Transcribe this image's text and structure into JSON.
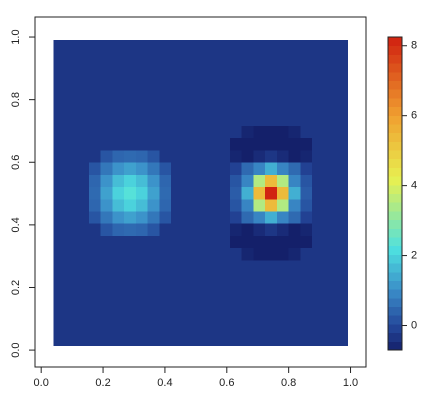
{
  "chart_data": {
    "type": "heatmap",
    "xrange": [
      0.04,
      0.99
    ],
    "yrange": [
      0.015,
      0.99
    ],
    "xlim": [
      -0.02,
      1.05
    ],
    "ylim": [
      -0.054,
      1.064
    ],
    "xticks": [
      {
        "value": 0,
        "label": "0.0"
      },
      0.2,
      0.4,
      0.6,
      0.8,
      {
        "value": 1,
        "label": "1.0"
      }
    ],
    "yticks": [
      {
        "value": 0,
        "label": "0.0"
      },
      0.2,
      0.4,
      0.6,
      0.8,
      {
        "value": 1,
        "label": "1.0"
      }
    ],
    "zlim": [
      -0.7,
      8.25
    ],
    "zticks": [
      0,
      2,
      4,
      6,
      8
    ],
    "colorscale": [
      [
        -0.7,
        "#14206a"
      ],
      [
        0,
        "#24479a"
      ],
      [
        1,
        "#3a8cc8"
      ],
      [
        2.2,
        "#4ee0e0"
      ],
      [
        4.2,
        "#e8f050"
      ],
      [
        6,
        "#f0a030"
      ],
      [
        8.25,
        "#d02010"
      ]
    ],
    "z": [
      [
        -0.3,
        -0.3,
        -0.3,
        -0.3,
        -0.3,
        -0.3,
        -0.3,
        -0.3,
        -0.3,
        -0.3,
        -0.3,
        -0.3,
        -0.3,
        -0.3,
        -0.3,
        -0.3,
        -0.3,
        -0.3,
        -0.3,
        -0.3,
        -0.3,
        -0.3,
        -0.3,
        -0.3,
        -0.3
      ],
      [
        -0.3,
        -0.3,
        -0.3,
        -0.3,
        -0.3,
        -0.3,
        -0.3,
        -0.3,
        -0.3,
        -0.3,
        -0.3,
        -0.3,
        -0.3,
        -0.3,
        -0.3,
        -0.3,
        -0.3,
        -0.3,
        -0.3,
        -0.3,
        -0.3,
        -0.3,
        -0.3,
        -0.3,
        -0.3
      ],
      [
        -0.3,
        -0.3,
        -0.3,
        -0.3,
        -0.3,
        -0.3,
        -0.3,
        -0.3,
        -0.3,
        -0.3,
        -0.3,
        -0.3,
        -0.3,
        -0.3,
        -0.3,
        -0.3,
        -0.3,
        -0.3,
        -0.3,
        -0.3,
        -0.3,
        -0.3,
        -0.3,
        -0.3,
        -0.3
      ],
      [
        -0.3,
        -0.3,
        -0.3,
        -0.3,
        -0.3,
        -0.3,
        -0.3,
        -0.3,
        -0.3,
        -0.3,
        -0.3,
        -0.3,
        -0.3,
        -0.3,
        -0.3,
        -0.3,
        -0.3,
        -0.3,
        -0.3,
        -0.3,
        -0.3,
        -0.3,
        -0.3,
        -0.3,
        -0.3
      ],
      [
        -0.3,
        -0.3,
        -0.3,
        -0.3,
        -0.3,
        -0.3,
        -0.3,
        -0.3,
        -0.3,
        -0.3,
        -0.3,
        -0.3,
        -0.3,
        -0.3,
        -0.3,
        -0.3,
        -0.3,
        -0.3,
        -0.3,
        -0.3,
        -0.3,
        -0.3,
        -0.3,
        -0.3,
        -0.3
      ],
      [
        -0.3,
        -0.3,
        -0.3,
        -0.3,
        -0.3,
        -0.3,
        -0.3,
        -0.3,
        -0.3,
        -0.3,
        -0.3,
        -0.3,
        -0.3,
        -0.3,
        -0.3,
        -0.3,
        -0.3,
        -0.3,
        -0.3,
        -0.3,
        -0.3,
        -0.3,
        -0.3,
        -0.3,
        -0.3
      ],
      [
        -0.3,
        -0.3,
        -0.3,
        -0.3,
        -0.3,
        -0.3,
        -0.3,
        -0.3,
        -0.3,
        -0.3,
        -0.3,
        -0.3,
        -0.3,
        -0.3,
        -0.3,
        -0.3,
        -0.3,
        -0.3,
        -0.3,
        -0.3,
        -0.3,
        -0.3,
        -0.3,
        -0.3,
        -0.3
      ],
      [
        -0.3,
        -0.3,
        -0.3,
        -0.3,
        -0.3,
        -0.3,
        -0.3,
        -0.3,
        -0.3,
        -0.3,
        -0.3,
        -0.3,
        -0.3,
        -0.3,
        -0.3,
        -0.3,
        -0.6,
        -0.7,
        -0.7,
        -0.7,
        -0.6,
        -0.3,
        -0.3,
        -0.3,
        -0.3
      ],
      [
        -0.3,
        -0.3,
        -0.3,
        -0.3,
        -0.3,
        -0.3,
        -0.3,
        -0.3,
        -0.3,
        -0.3,
        -0.3,
        -0.3,
        -0.3,
        -0.3,
        -0.3,
        -0.7,
        -0.8,
        -0.8,
        -0.8,
        -0.8,
        -0.8,
        -0.7,
        -0.3,
        -0.3,
        -0.3
      ],
      [
        -0.3,
        -0.3,
        -0.3,
        -0.3,
        0.2,
        0.45,
        0.5,
        0.45,
        0.2,
        -0.3,
        -0.3,
        -0.3,
        -0.3,
        -0.3,
        -0.3,
        -0.6,
        -0.7,
        -0.5,
        -0.3,
        -0.5,
        -0.7,
        -0.6,
        -0.3,
        -0.3,
        -0.3
      ],
      [
        -0.3,
        -0.3,
        -0.3,
        0.2,
        0.7,
        1.1,
        1.3,
        1.1,
        0.7,
        0.2,
        -0.3,
        -0.3,
        -0.3,
        -0.3,
        -0.3,
        -0.1,
        0.5,
        0.9,
        1.5,
        0.9,
        0.5,
        -0.1,
        -0.3,
        -0.3,
        -0.3
      ],
      [
        -0.3,
        -0.3,
        -0.3,
        0.45,
        1.1,
        1.7,
        2.0,
        1.7,
        1.1,
        0.45,
        -0.3,
        -0.3,
        -0.3,
        -0.3,
        -0.3,
        0.2,
        0.9,
        3.5,
        5.4,
        3.5,
        0.9,
        0.2,
        -0.3,
        -0.3,
        -0.3
      ],
      [
        -0.3,
        -0.3,
        -0.3,
        0.5,
        1.3,
        2.0,
        2.3,
        2.0,
        1.3,
        0.5,
        -0.3,
        -0.3,
        -0.3,
        -0.3,
        -0.3,
        0.3,
        1.5,
        5.4,
        8.2,
        5.4,
        1.5,
        0.3,
        -0.3,
        -0.3,
        -0.3
      ],
      [
        -0.3,
        -0.3,
        -0.3,
        0.45,
        1.1,
        1.7,
        2.0,
        1.7,
        1.1,
        0.45,
        -0.3,
        -0.3,
        -0.3,
        -0.3,
        -0.3,
        0.2,
        0.9,
        3.5,
        5.4,
        3.5,
        0.9,
        0.2,
        -0.3,
        -0.3,
        -0.3
      ],
      [
        -0.3,
        -0.3,
        -0.3,
        0.2,
        0.7,
        1.1,
        1.3,
        1.1,
        0.7,
        0.2,
        -0.3,
        -0.3,
        -0.3,
        -0.3,
        -0.3,
        -0.1,
        0.5,
        0.9,
        1.5,
        0.9,
        0.5,
        -0.1,
        -0.3,
        -0.3,
        -0.3
      ],
      [
        -0.3,
        -0.3,
        -0.3,
        -0.3,
        0.2,
        0.45,
        0.5,
        0.45,
        0.2,
        -0.3,
        -0.3,
        -0.3,
        -0.3,
        -0.3,
        -0.3,
        -0.6,
        -0.7,
        -0.5,
        -0.3,
        -0.5,
        -0.7,
        -0.6,
        -0.3,
        -0.3,
        -0.3
      ],
      [
        -0.3,
        -0.3,
        -0.3,
        -0.3,
        -0.3,
        -0.3,
        -0.3,
        -0.3,
        -0.3,
        -0.3,
        -0.3,
        -0.3,
        -0.3,
        -0.3,
        -0.3,
        -0.7,
        -0.8,
        -0.8,
        -0.8,
        -0.8,
        -0.8,
        -0.7,
        -0.3,
        -0.3,
        -0.3
      ],
      [
        -0.3,
        -0.3,
        -0.3,
        -0.3,
        -0.3,
        -0.3,
        -0.3,
        -0.3,
        -0.3,
        -0.3,
        -0.3,
        -0.3,
        -0.3,
        -0.3,
        -0.3,
        -0.3,
        -0.6,
        -0.7,
        -0.7,
        -0.7,
        -0.6,
        -0.3,
        -0.3,
        -0.3,
        -0.3
      ],
      [
        -0.3,
        -0.3,
        -0.3,
        -0.3,
        -0.3,
        -0.3,
        -0.3,
        -0.3,
        -0.3,
        -0.3,
        -0.3,
        -0.3,
        -0.3,
        -0.3,
        -0.3,
        -0.3,
        -0.3,
        -0.3,
        -0.3,
        -0.3,
        -0.3,
        -0.3,
        -0.3,
        -0.3,
        -0.3
      ],
      [
        -0.3,
        -0.3,
        -0.3,
        -0.3,
        -0.3,
        -0.3,
        -0.3,
        -0.3,
        -0.3,
        -0.3,
        -0.3,
        -0.3,
        -0.3,
        -0.3,
        -0.3,
        -0.3,
        -0.3,
        -0.3,
        -0.3,
        -0.3,
        -0.3,
        -0.3,
        -0.3,
        -0.3,
        -0.3
      ],
      [
        -0.3,
        -0.3,
        -0.3,
        -0.3,
        -0.3,
        -0.3,
        -0.3,
        -0.3,
        -0.3,
        -0.3,
        -0.3,
        -0.3,
        -0.3,
        -0.3,
        -0.3,
        -0.3,
        -0.3,
        -0.3,
        -0.3,
        -0.3,
        -0.3,
        -0.3,
        -0.3,
        -0.3,
        -0.3
      ],
      [
        -0.3,
        -0.3,
        -0.3,
        -0.3,
        -0.3,
        -0.3,
        -0.3,
        -0.3,
        -0.3,
        -0.3,
        -0.3,
        -0.3,
        -0.3,
        -0.3,
        -0.3,
        -0.3,
        -0.3,
        -0.3,
        -0.3,
        -0.3,
        -0.3,
        -0.3,
        -0.3,
        -0.3,
        -0.3
      ],
      [
        -0.3,
        -0.3,
        -0.3,
        -0.3,
        -0.3,
        -0.3,
        -0.3,
        -0.3,
        -0.3,
        -0.3,
        -0.3,
        -0.3,
        -0.3,
        -0.3,
        -0.3,
        -0.3,
        -0.3,
        -0.3,
        -0.3,
        -0.3,
        -0.3,
        -0.3,
        -0.3,
        -0.3,
        -0.3
      ],
      [
        -0.3,
        -0.3,
        -0.3,
        -0.3,
        -0.3,
        -0.3,
        -0.3,
        -0.3,
        -0.3,
        -0.3,
        -0.3,
        -0.3,
        -0.3,
        -0.3,
        -0.3,
        -0.3,
        -0.3,
        -0.3,
        -0.3,
        -0.3,
        -0.3,
        -0.3,
        -0.3,
        -0.3,
        -0.3
      ],
      [
        -0.3,
        -0.3,
        -0.3,
        -0.3,
        -0.3,
        -0.3,
        -0.3,
        -0.3,
        -0.3,
        -0.3,
        -0.3,
        -0.3,
        -0.3,
        -0.3,
        -0.3,
        -0.3,
        -0.3,
        -0.3,
        -0.3,
        -0.3,
        -0.3,
        -0.3,
        -0.3,
        -0.3,
        -0.3
      ]
    ]
  }
}
